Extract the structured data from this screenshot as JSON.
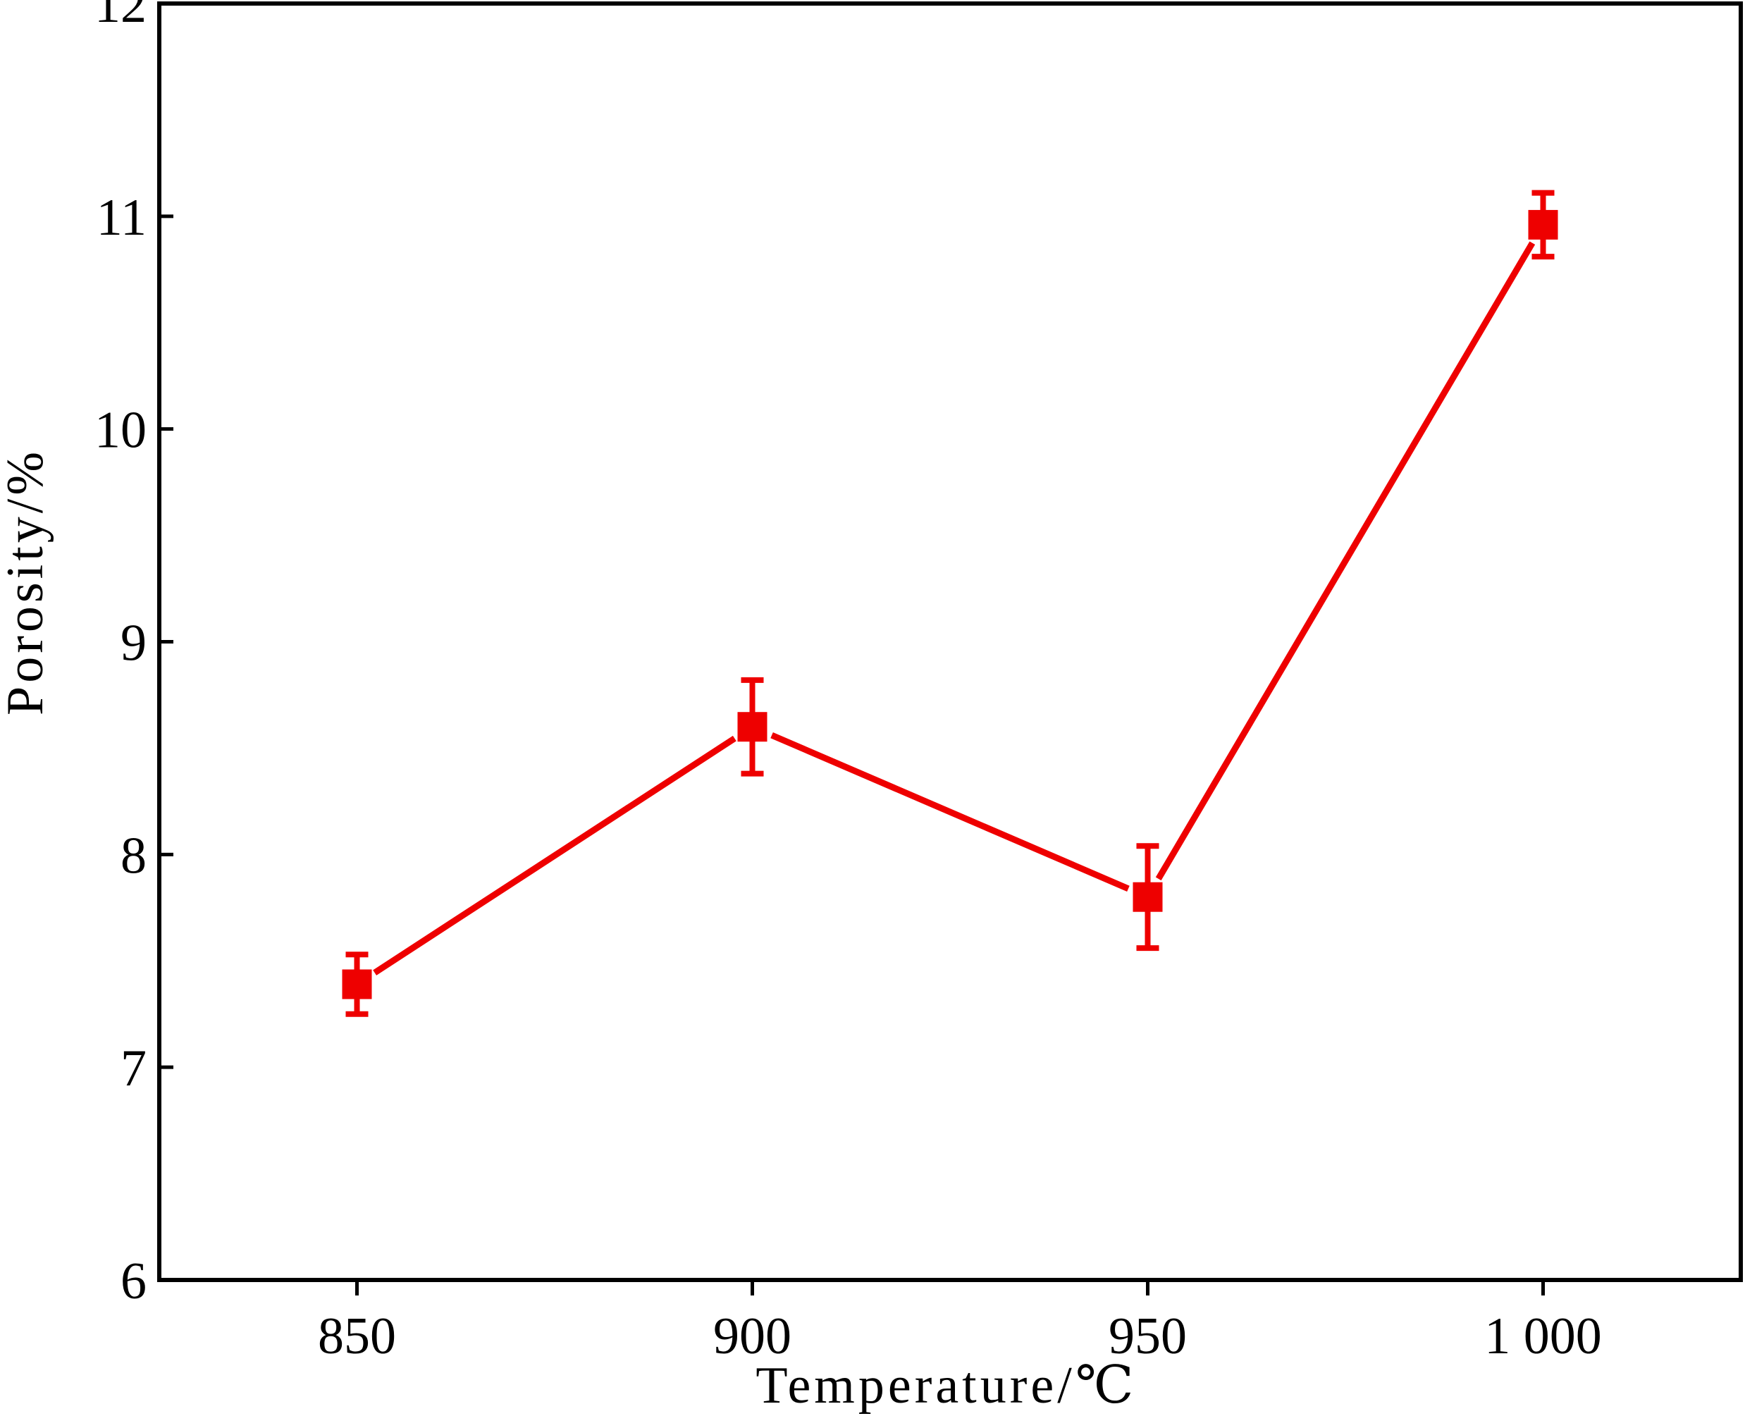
{
  "chart_data": {
    "type": "line",
    "title": "",
    "xlabel": "Temperature/℃",
    "ylabel": "Porosity/%",
    "x_ticks": [
      850,
      900,
      950,
      1000
    ],
    "x_tick_labels": [
      "850",
      "900",
      "950",
      "1 000"
    ],
    "y_ticks": [
      6,
      7,
      8,
      9,
      10,
      11,
      12
    ],
    "y_tick_labels": [
      "6",
      "7",
      "8",
      "9",
      "10",
      "11",
      "12"
    ],
    "xlim": [
      825,
      1025
    ],
    "ylim": [
      6,
      12
    ],
    "grid": false,
    "legend": "none",
    "series": [
      {
        "x": [
          850,
          900,
          950,
          1000
        ],
        "y": [
          7.39,
          8.6,
          7.8,
          10.96
        ],
        "error_low": [
          0.14,
          0.22,
          0.24,
          0.15
        ],
        "error_high": [
          0.14,
          0.22,
          0.24,
          0.15
        ],
        "marker": "square",
        "color": "#ee0000"
      }
    ]
  }
}
